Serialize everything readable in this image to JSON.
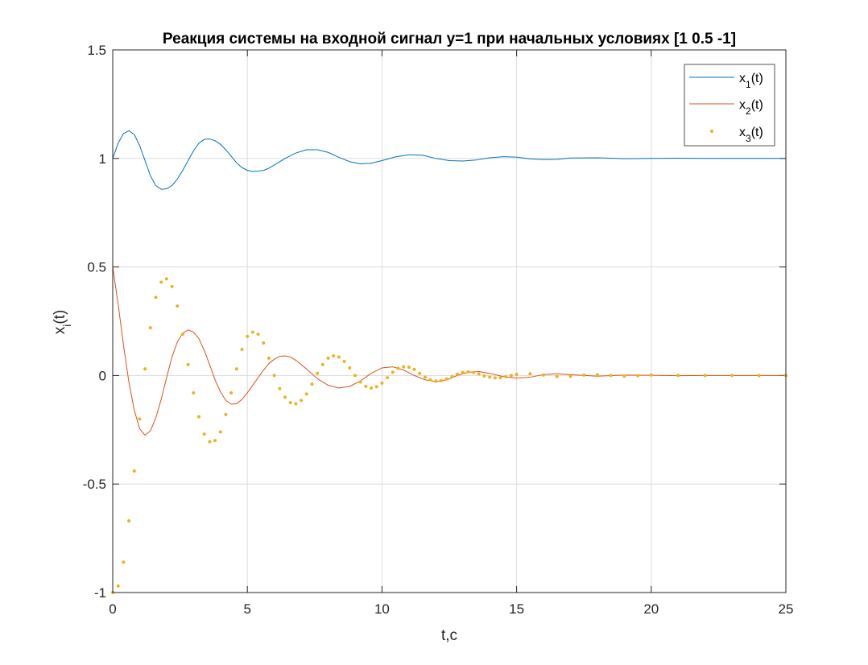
{
  "chart_data": {
    "type": "line",
    "title": "Реакция системы на входной сигнал y=1 при начальных условиях [1 0.5 -1]",
    "xlabel": "t,c",
    "ylabel": {
      "base": "x",
      "sub": "i",
      "suffix": "(t)"
    },
    "xlim": [
      0,
      25
    ],
    "ylim": [
      -1,
      1.5
    ],
    "xticks": [
      0,
      5,
      10,
      15,
      20,
      25
    ],
    "yticks": [
      -1,
      -0.5,
      0,
      0.5,
      1,
      1.5
    ],
    "xtick_labels": [
      "0",
      "5",
      "10",
      "15",
      "20",
      "25"
    ],
    "ytick_labels": [
      "-1",
      "-0.5",
      "0",
      "0.5",
      "1",
      "1.5"
    ],
    "grid": true,
    "legend_position": "top-right",
    "series": [
      {
        "name": "x1(t)",
        "legend": {
          "base": "x",
          "sub": "1",
          "suffix": "(t)"
        },
        "style": "line",
        "color": "#0072BD",
        "x": [
          0,
          0.2,
          0.4,
          0.6,
          0.8,
          1.0,
          1.2,
          1.4,
          1.6,
          1.8,
          2.0,
          2.2,
          2.4,
          2.6,
          2.8,
          3.0,
          3.2,
          3.4,
          3.6,
          3.8,
          4.0,
          4.2,
          4.4,
          4.6,
          4.8,
          5.0,
          5.2,
          5.4,
          5.6,
          5.8,
          6.0,
          6.4,
          6.8,
          7.2,
          7.6,
          8.0,
          8.4,
          8.8,
          9.2,
          9.6,
          10.0,
          10.5,
          11.0,
          11.5,
          12.0,
          12.5,
          13.0,
          13.5,
          14.0,
          14.5,
          15.0,
          15.5,
          16.0,
          16.5,
          17.0,
          18.0,
          19.0,
          20.0,
          21.0,
          22.0,
          23.0,
          24.0,
          25.0
        ],
        "y": [
          1.0,
          1.07,
          1.115,
          1.128,
          1.11,
          1.06,
          0.99,
          0.92,
          0.875,
          0.858,
          0.86,
          0.875,
          0.905,
          0.945,
          0.99,
          1.035,
          1.07,
          1.088,
          1.09,
          1.082,
          1.065,
          1.04,
          1.01,
          0.98,
          0.958,
          0.945,
          0.94,
          0.942,
          0.945,
          0.955,
          0.97,
          1.0,
          1.025,
          1.04,
          1.04,
          1.028,
          1.005,
          0.985,
          0.975,
          0.978,
          0.99,
          1.007,
          1.017,
          1.015,
          1.0,
          0.99,
          0.988,
          0.993,
          1.003,
          1.008,
          1.006,
          0.998,
          0.995,
          0.996,
          1.002,
          1.003,
          0.999,
          1.0,
          1.001,
          1.0,
          1.0,
          1.0,
          1.0
        ]
      },
      {
        "name": "x2(t)",
        "legend": {
          "base": "x",
          "sub": "2",
          "suffix": "(t)"
        },
        "style": "line",
        "color": "#D95319",
        "x": [
          0,
          0.2,
          0.4,
          0.6,
          0.8,
          1.0,
          1.2,
          1.4,
          1.6,
          1.8,
          2.0,
          2.2,
          2.4,
          2.6,
          2.8,
          3.0,
          3.2,
          3.4,
          3.6,
          3.8,
          4.0,
          4.2,
          4.4,
          4.6,
          4.8,
          5.0,
          5.2,
          5.4,
          5.6,
          5.8,
          6.0,
          6.2,
          6.4,
          6.6,
          6.8,
          7.2,
          7.6,
          8.0,
          8.4,
          8.8,
          9.2,
          9.6,
          10.0,
          10.4,
          10.8,
          11.2,
          11.6,
          12.0,
          12.4,
          12.8,
          13.2,
          13.6,
          14.0,
          14.5,
          15.0,
          15.5,
          16.0,
          16.5,
          17.0,
          18.0,
          19.0,
          20.0,
          21.0,
          22.0,
          23.0,
          24.0,
          25.0
        ],
        "y": [
          0.5,
          0.33,
          0.14,
          -0.03,
          -0.16,
          -0.245,
          -0.275,
          -0.255,
          -0.195,
          -0.11,
          -0.01,
          0.085,
          0.155,
          0.195,
          0.21,
          0.2,
          0.17,
          0.115,
          0.05,
          -0.02,
          -0.075,
          -0.115,
          -0.132,
          -0.13,
          -0.11,
          -0.08,
          -0.045,
          -0.01,
          0.025,
          0.055,
          0.075,
          0.088,
          0.09,
          0.085,
          0.07,
          0.03,
          -0.015,
          -0.045,
          -0.058,
          -0.05,
          -0.025,
          0.01,
          0.035,
          0.04,
          0.025,
          0.0,
          -0.02,
          -0.028,
          -0.02,
          0.0,
          0.015,
          0.018,
          0.01,
          -0.005,
          -0.012,
          -0.008,
          0.004,
          0.008,
          0.004,
          -0.003,
          0.002,
          0.001,
          -0.001,
          0.0,
          0.0,
          0.0,
          0.0
        ]
      },
      {
        "name": "x3(t)",
        "legend": {
          "base": "x",
          "sub": "3",
          "suffix": "(t)"
        },
        "style": "points",
        "color": "#EDB120",
        "x": [
          0,
          0.2,
          0.4,
          0.6,
          0.8,
          1.0,
          1.2,
          1.4,
          1.6,
          1.8,
          2.0,
          2.2,
          2.4,
          2.6,
          2.8,
          3.0,
          3.2,
          3.4,
          3.6,
          3.8,
          4.0,
          4.2,
          4.4,
          4.6,
          4.8,
          5.0,
          5.2,
          5.4,
          5.6,
          5.8,
          6.0,
          6.2,
          6.4,
          6.6,
          6.8,
          7.0,
          7.2,
          7.4,
          7.6,
          7.8,
          8.0,
          8.2,
          8.4,
          8.6,
          8.8,
          9.0,
          9.2,
          9.4,
          9.6,
          9.8,
          10.0,
          10.2,
          10.4,
          10.6,
          10.8,
          11.0,
          11.2,
          11.4,
          11.6,
          11.8,
          12.0,
          12.2,
          12.4,
          12.6,
          12.8,
          13.0,
          13.2,
          13.4,
          13.6,
          13.8,
          14.0,
          14.2,
          14.4,
          14.6,
          14.8,
          15.0,
          15.5,
          16.0,
          16.5,
          17.0,
          17.5,
          18.0,
          18.5,
          19.0,
          19.5,
          20.0,
          21.0,
          22.0,
          23.0,
          24.0,
          25.0
        ],
        "y": [
          -1.0,
          -0.97,
          -0.86,
          -0.67,
          -0.44,
          -0.2,
          0.03,
          0.22,
          0.36,
          0.43,
          0.445,
          0.41,
          0.32,
          0.19,
          0.05,
          -0.08,
          -0.19,
          -0.27,
          -0.305,
          -0.3,
          -0.26,
          -0.18,
          -0.08,
          0.03,
          0.12,
          0.18,
          0.2,
          0.19,
          0.15,
          0.08,
          0.0,
          -0.06,
          -0.1,
          -0.125,
          -0.13,
          -0.115,
          -0.085,
          -0.04,
          0.01,
          0.05,
          0.08,
          0.09,
          0.085,
          0.065,
          0.035,
          0.0,
          -0.03,
          -0.05,
          -0.058,
          -0.052,
          -0.035,
          -0.01,
          0.015,
          0.033,
          0.04,
          0.038,
          0.028,
          0.01,
          -0.008,
          -0.02,
          -0.026,
          -0.024,
          -0.016,
          -0.005,
          0.006,
          0.014,
          0.017,
          0.014,
          0.007,
          -0.002,
          -0.008,
          -0.011,
          -0.01,
          -0.006,
          0.0,
          0.005,
          0.008,
          0.002,
          -0.005,
          -0.004,
          0.002,
          0.004,
          0.0,
          -0.003,
          -0.001,
          0.002,
          0.0,
          0.0,
          0.0,
          0.0,
          0.0
        ]
      }
    ]
  }
}
